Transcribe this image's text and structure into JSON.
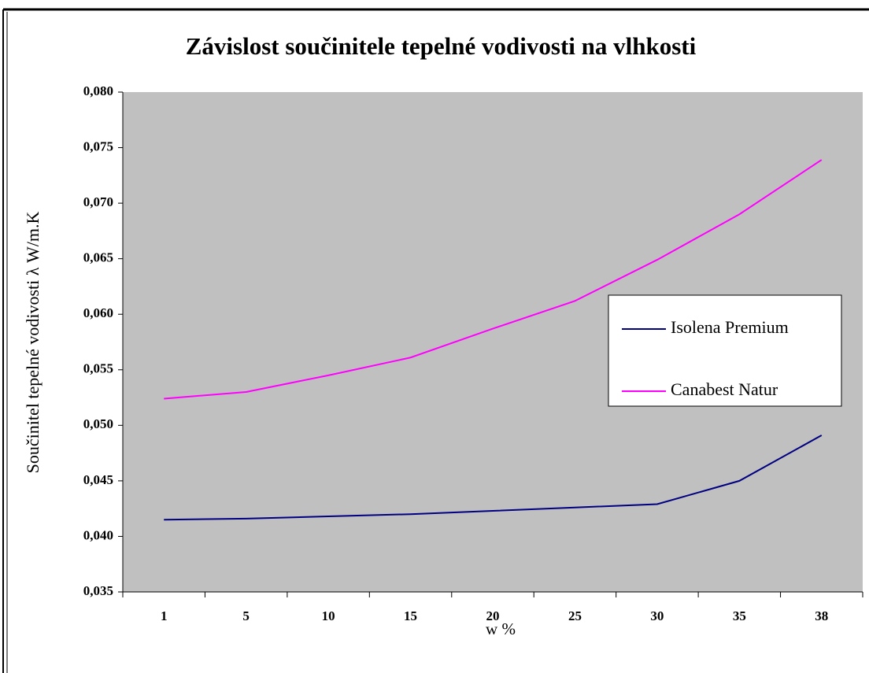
{
  "chart_data": {
    "type": "line",
    "title": "Závislost součinitele tepelné vodivosti na vlhkosti",
    "xlabel": "w %",
    "ylabel": "Součinitel tepelné vodivosti λ W/m.K",
    "categories": [
      "1",
      "5",
      "10",
      "15",
      "20",
      "25",
      "30",
      "35",
      "38"
    ],
    "series": [
      {
        "name": "Isolena Premium",
        "color": "#000080",
        "values": [
          0.0415,
          0.0416,
          0.0418,
          0.042,
          0.0423,
          0.0426,
          0.0429,
          0.045,
          0.0491
        ]
      },
      {
        "name": "Canabest Natur",
        "color": "#ff00ff",
        "values": [
          0.0524,
          0.053,
          0.0545,
          0.0561,
          0.0587,
          0.0612,
          0.0649,
          0.069,
          0.0739
        ]
      }
    ],
    "ylim": [
      0.035,
      0.08
    ],
    "yticks": [
      {
        "value": 0.035,
        "label": "0,035"
      },
      {
        "value": 0.04,
        "label": "0,040"
      },
      {
        "value": 0.045,
        "label": "0,045"
      },
      {
        "value": 0.05,
        "label": "0,050"
      },
      {
        "value": 0.055,
        "label": "0,055"
      },
      {
        "value": 0.06,
        "label": "0,060"
      },
      {
        "value": 0.065,
        "label": "0,065"
      },
      {
        "value": 0.07,
        "label": "0,070"
      },
      {
        "value": 0.075,
        "label": "0,075"
      },
      {
        "value": 0.08,
        "label": "0,080"
      }
    ],
    "grid": false,
    "legend": "right"
  }
}
